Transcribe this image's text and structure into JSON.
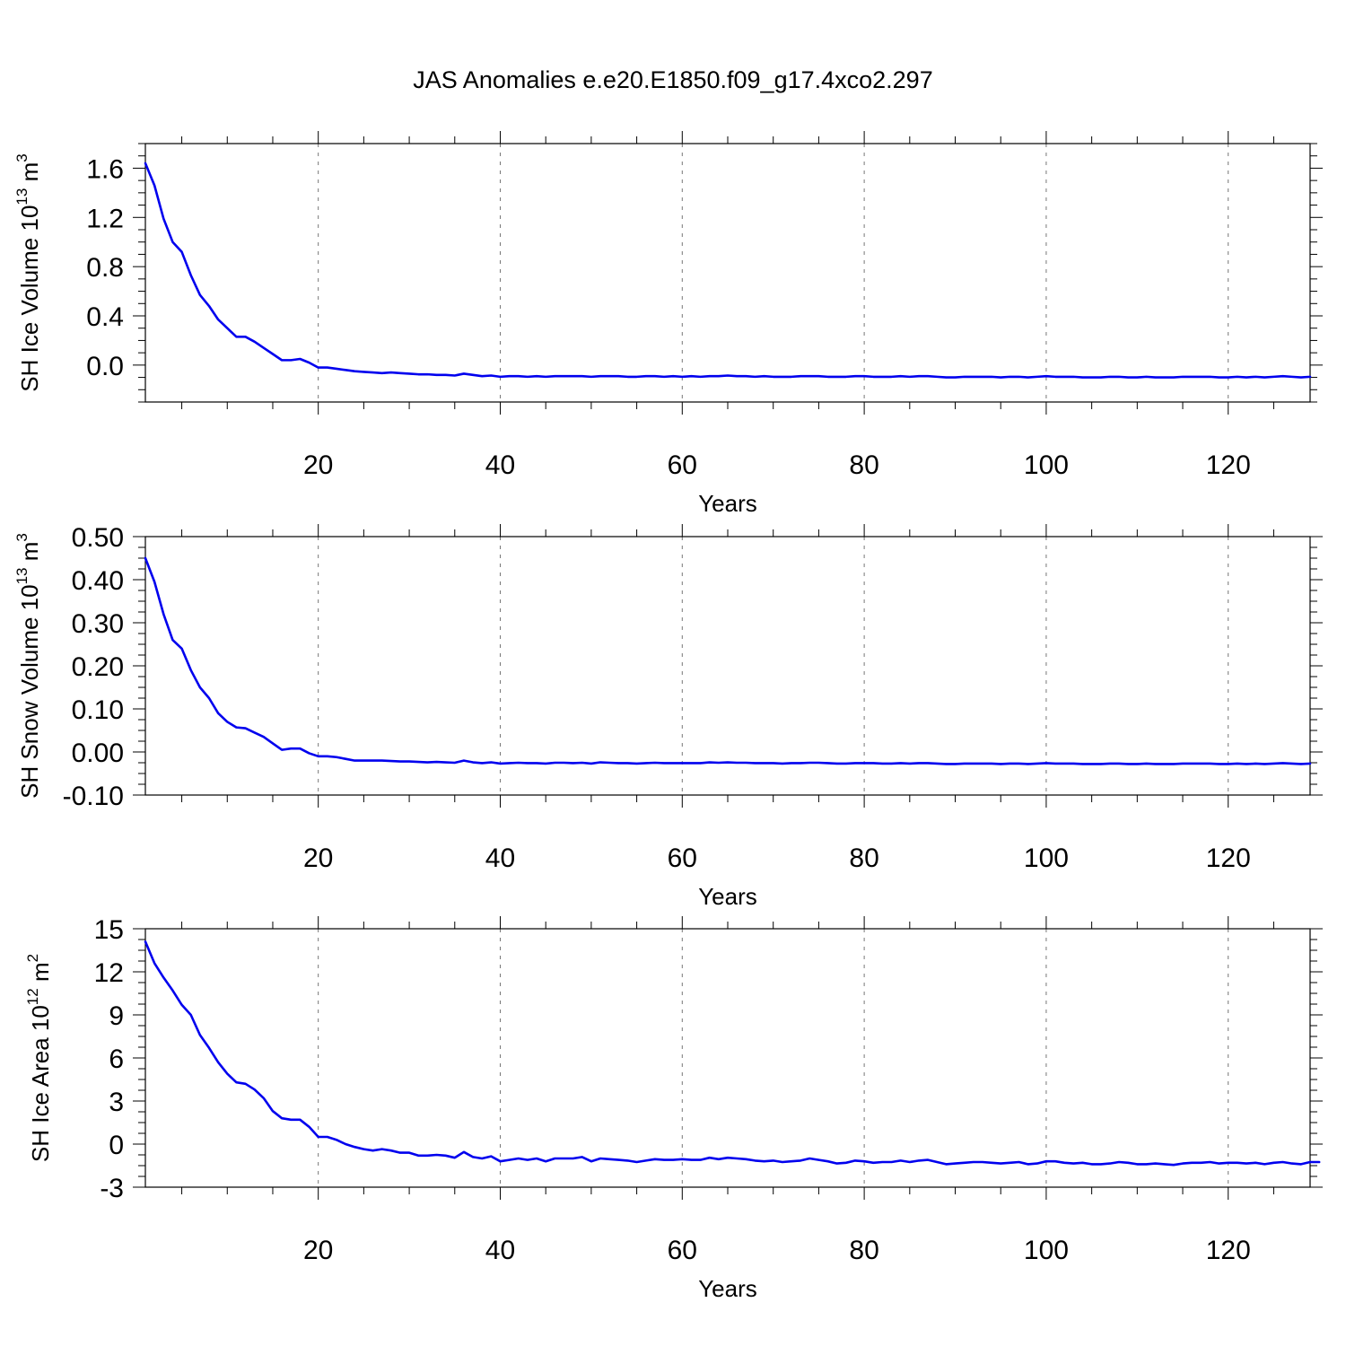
{
  "title": "JAS Anomalies e.e20.E1850.f09_g17.4xco2.297",
  "colors": {
    "series": "#0000ee",
    "frame": "#000000",
    "grid": "#777777"
  },
  "chart_data": [
    {
      "type": "line",
      "xlabel": "Years",
      "ylabel": "SH Ice Volume 10",
      "ylabel_sup": "13",
      "ylabel_unit": " m",
      "ylabel_unit_sup": "3",
      "xlim": [
        1,
        129
      ],
      "ylim": [
        -0.3,
        1.8
      ],
      "yticks": [
        0.0,
        0.4,
        0.8,
        1.2,
        1.6
      ],
      "yticklabels": [
        "0.0",
        "0.4",
        "0.8",
        "1.2",
        "1.6"
      ],
      "xticks": [
        20,
        40,
        60,
        80,
        100,
        120
      ],
      "xticklabels": [
        "20",
        "40",
        "60",
        "80",
        "100",
        "120"
      ],
      "grid": "vertical dashed at major x ticks",
      "series": [
        {
          "values": [
            1.64,
            1.46,
            1.19,
            1.0,
            0.92,
            0.73,
            0.57,
            0.48,
            0.37,
            0.3,
            0.23,
            0.23,
            0.19,
            0.14,
            0.09,
            0.04,
            0.04,
            0.05,
            0.02,
            -0.02,
            -0.02,
            -0.03,
            -0.04,
            -0.05,
            -0.055,
            -0.06,
            -0.065,
            -0.06,
            -0.065,
            -0.07,
            -0.075,
            -0.075,
            -0.08,
            -0.08,
            -0.085,
            -0.07,
            -0.08,
            -0.09,
            -0.085,
            -0.095,
            -0.09,
            -0.09,
            -0.095,
            -0.09,
            -0.095,
            -0.09,
            -0.09,
            -0.09,
            -0.09,
            -0.095,
            -0.09,
            -0.09,
            -0.09,
            -0.095,
            -0.095,
            -0.09,
            -0.09,
            -0.095,
            -0.09,
            -0.095,
            -0.09,
            -0.095,
            -0.09,
            -0.09,
            -0.085,
            -0.09,
            -0.09,
            -0.095,
            -0.09,
            -0.095,
            -0.095,
            -0.095,
            -0.09,
            -0.09,
            -0.09,
            -0.095,
            -0.095,
            -0.095,
            -0.09,
            -0.09,
            -0.095,
            -0.095,
            -0.095,
            -0.09,
            -0.095,
            -0.09,
            -0.09,
            -0.095,
            -0.1,
            -0.1,
            -0.095,
            -0.095,
            -0.095,
            -0.095,
            -0.1,
            -0.095,
            -0.095,
            -0.1,
            -0.095,
            -0.09,
            -0.095,
            -0.095,
            -0.095,
            -0.1,
            -0.1,
            -0.1,
            -0.095,
            -0.095,
            -0.1,
            -0.1,
            -0.095,
            -0.1,
            -0.1,
            -0.1,
            -0.095,
            -0.095,
            -0.095,
            -0.095,
            -0.1,
            -0.1,
            -0.095,
            -0.1,
            -0.095,
            -0.1,
            -0.095,
            -0.09,
            -0.095,
            -0.1,
            -0.095
          ]
        }
      ]
    },
    {
      "type": "line",
      "xlabel": "Years",
      "ylabel": "SH Snow Volume 10",
      "ylabel_sup": "13",
      "ylabel_unit": " m",
      "ylabel_unit_sup": "3",
      "xlim": [
        1,
        129
      ],
      "ylim": [
        -0.1,
        0.5
      ],
      "yticks": [
        -0.1,
        0.0,
        0.1,
        0.2,
        0.3,
        0.4,
        0.5
      ],
      "yticklabels": [
        "-0.10",
        "0.00",
        "0.10",
        "0.20",
        "0.30",
        "0.40",
        "0.50"
      ],
      "xticks": [
        20,
        40,
        60,
        80,
        100,
        120
      ],
      "xticklabels": [
        "20",
        "40",
        "60",
        "80",
        "100",
        "120"
      ],
      "grid": "vertical dashed at major x ticks",
      "series": [
        {
          "values": [
            0.45,
            0.395,
            0.32,
            0.26,
            0.24,
            0.19,
            0.15,
            0.125,
            0.09,
            0.07,
            0.057,
            0.055,
            0.045,
            0.035,
            0.02,
            0.005,
            0.008,
            0.008,
            -0.003,
            -0.01,
            -0.01,
            -0.012,
            -0.016,
            -0.02,
            -0.02,
            -0.02,
            -0.02,
            -0.021,
            -0.022,
            -0.022,
            -0.023,
            -0.024,
            -0.023,
            -0.024,
            -0.025,
            -0.02,
            -0.024,
            -0.026,
            -0.024,
            -0.027,
            -0.026,
            -0.025,
            -0.026,
            -0.026,
            -0.027,
            -0.025,
            -0.025,
            -0.026,
            -0.025,
            -0.027,
            -0.024,
            -0.025,
            -0.026,
            -0.026,
            -0.027,
            -0.026,
            -0.025,
            -0.026,
            -0.026,
            -0.026,
            -0.026,
            -0.026,
            -0.024,
            -0.025,
            -0.024,
            -0.025,
            -0.025,
            -0.026,
            -0.026,
            -0.026,
            -0.027,
            -0.026,
            -0.026,
            -0.025,
            -0.025,
            -0.026,
            -0.027,
            -0.027,
            -0.026,
            -0.026,
            -0.026,
            -0.027,
            -0.027,
            -0.026,
            -0.027,
            -0.026,
            -0.026,
            -0.027,
            -0.028,
            -0.028,
            -0.027,
            -0.027,
            -0.027,
            -0.027,
            -0.028,
            -0.027,
            -0.027,
            -0.028,
            -0.027,
            -0.026,
            -0.027,
            -0.027,
            -0.027,
            -0.028,
            -0.028,
            -0.028,
            -0.027,
            -0.027,
            -0.028,
            -0.028,
            -0.027,
            -0.028,
            -0.028,
            -0.028,
            -0.027,
            -0.027,
            -0.027,
            -0.027,
            -0.028,
            -0.028,
            -0.027,
            -0.028,
            -0.027,
            -0.028,
            -0.027,
            -0.026,
            -0.027,
            -0.028,
            -0.027
          ]
        }
      ]
    },
    {
      "type": "line",
      "xlabel": "Years",
      "ylabel": "SH Ice Area 10",
      "ylabel_sup": "12",
      "ylabel_unit": " m",
      "ylabel_unit_sup": "2",
      "xlim": [
        1,
        129
      ],
      "ylim": [
        -3,
        15
      ],
      "yticks": [
        -3,
        0,
        3,
        6,
        9,
        12,
        15
      ],
      "yticklabels": [
        "-3",
        "0",
        "3",
        "6",
        "9",
        "12",
        "15"
      ],
      "xticks": [
        20,
        40,
        60,
        80,
        100,
        120
      ],
      "xticklabels": [
        "20",
        "40",
        "60",
        "80",
        "100",
        "120"
      ],
      "grid": "vertical dashed at major x ticks",
      "series": [
        {
          "values": [
            14.1,
            12.6,
            11.6,
            10.7,
            9.7,
            9.0,
            7.6,
            6.7,
            5.7,
            4.9,
            4.3,
            4.2,
            3.8,
            3.2,
            2.3,
            1.8,
            1.7,
            1.7,
            1.2,
            0.5,
            0.5,
            0.3,
            0.0,
            -0.2,
            -0.35,
            -0.45,
            -0.35,
            -0.45,
            -0.6,
            -0.6,
            -0.8,
            -0.8,
            -0.75,
            -0.8,
            -0.95,
            -0.55,
            -0.9,
            -1.0,
            -0.85,
            -1.2,
            -1.1,
            -1.0,
            -1.1,
            -1.0,
            -1.2,
            -1.0,
            -1.0,
            -1.0,
            -0.9,
            -1.2,
            -1.0,
            -1.05,
            -1.1,
            -1.15,
            -1.25,
            -1.15,
            -1.05,
            -1.1,
            -1.1,
            -1.05,
            -1.1,
            -1.1,
            -0.95,
            -1.05,
            -0.95,
            -1.0,
            -1.05,
            -1.15,
            -1.2,
            -1.15,
            -1.25,
            -1.2,
            -1.15,
            -1.0,
            -1.1,
            -1.2,
            -1.35,
            -1.3,
            -1.15,
            -1.2,
            -1.3,
            -1.25,
            -1.25,
            -1.15,
            -1.25,
            -1.15,
            -1.1,
            -1.25,
            -1.4,
            -1.35,
            -1.3,
            -1.25,
            -1.25,
            -1.3,
            -1.35,
            -1.3,
            -1.25,
            -1.4,
            -1.35,
            -1.2,
            -1.2,
            -1.3,
            -1.35,
            -1.3,
            -1.4,
            -1.4,
            -1.35,
            -1.25,
            -1.3,
            -1.4,
            -1.4,
            -1.35,
            -1.4,
            -1.45,
            -1.35,
            -1.3,
            -1.3,
            -1.25,
            -1.35,
            -1.3,
            -1.3,
            -1.35,
            -1.3,
            -1.4,
            -1.3,
            -1.25,
            -1.35,
            -1.4,
            -1.25,
            -1.25
          ]
        }
      ]
    }
  ]
}
